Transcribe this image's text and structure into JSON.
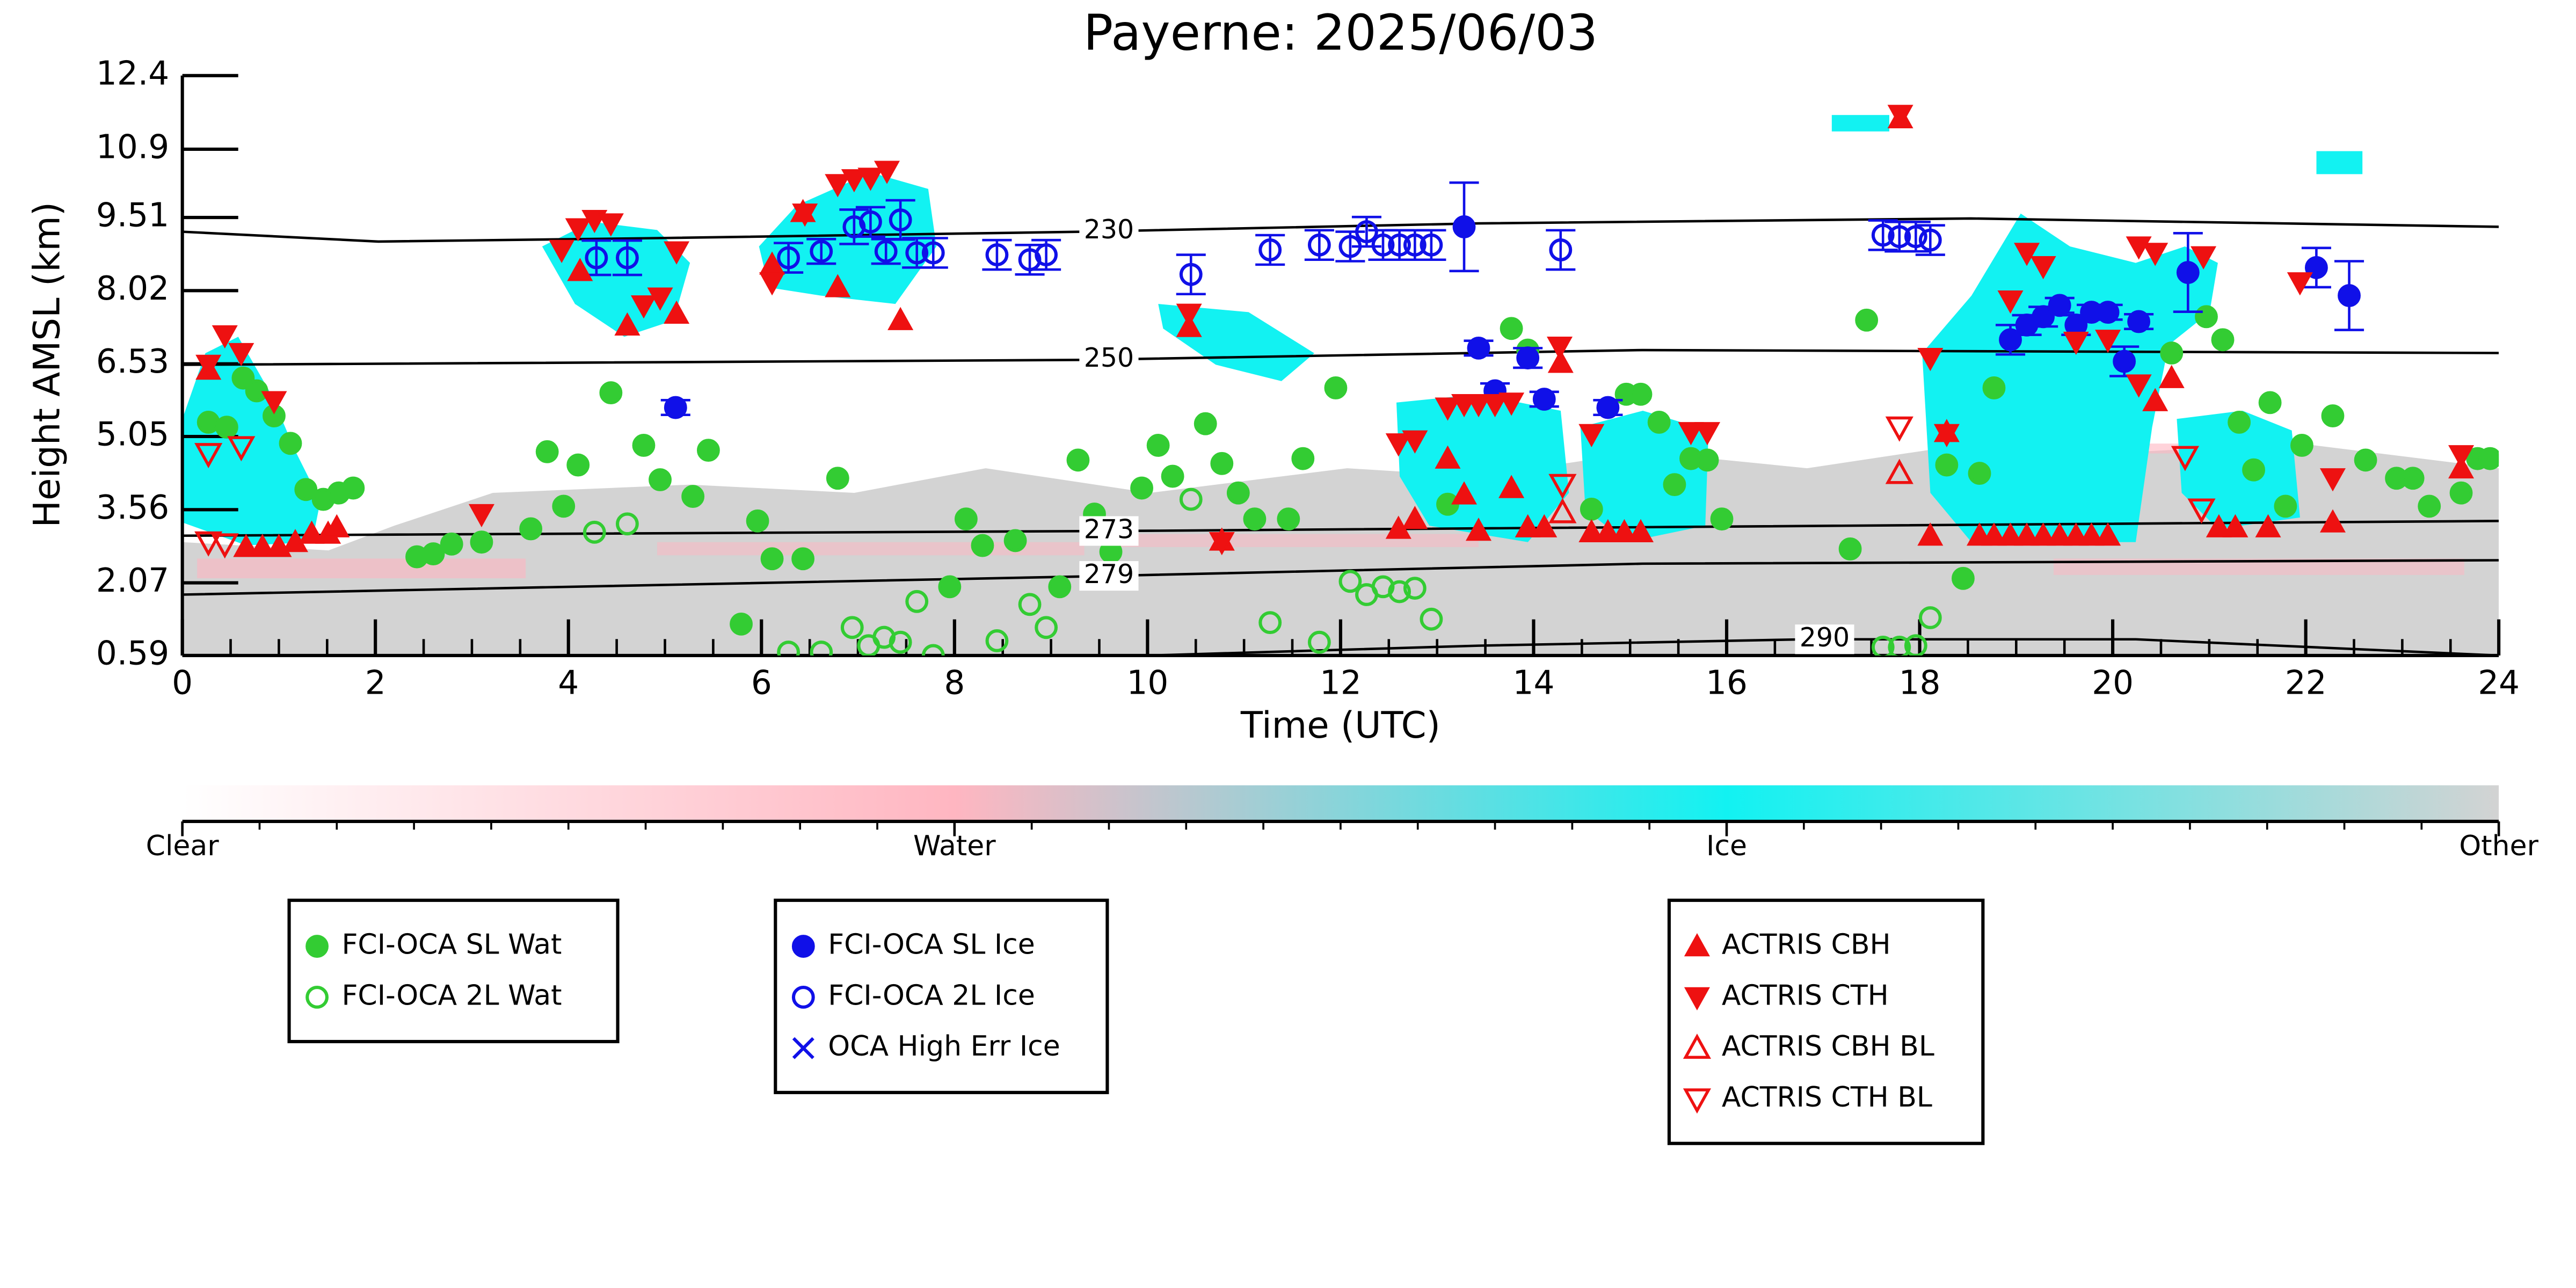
{
  "chart_data": {
    "type": "scatter",
    "title": "Payerne: 2025/06/03",
    "xlabel": "Time (UTC)",
    "ylabel": "Height AMSL (km)",
    "xlim": [
      0,
      24
    ],
    "xticks": [
      0,
      2,
      4,
      6,
      8,
      10,
      12,
      14,
      16,
      18,
      20,
      22,
      24
    ],
    "ylim": [
      0.59,
      12.4
    ],
    "yticks": [
      0.59,
      2.07,
      3.56,
      5.05,
      6.53,
      8.02,
      9.51,
      10.9,
      12.4
    ],
    "grid": false,
    "series": [
      {
        "name": "FCI-OCA SL Wat",
        "color": "#33cc33",
        "marker": "circle",
        "filled": true,
        "x": [
          0.27,
          0.46,
          0.63,
          0.77,
          0.95,
          1.12,
          1.28,
          1.46,
          1.62,
          1.77,
          2.43,
          2.6,
          2.79,
          3.1,
          3.61,
          3.78,
          3.95,
          4.1,
          4.44,
          4.78,
          4.95,
          5.29,
          5.45,
          5.79,
          5.96,
          6.11,
          6.43,
          6.79,
          7.95,
          8.12,
          8.29,
          8.63,
          9.09,
          9.28,
          9.45,
          9.62,
          9.94,
          10.11,
          10.26,
          10.6,
          10.77,
          10.94,
          11.11,
          11.46,
          11.61,
          11.95,
          13.11,
          13.77,
          13.94,
          14.6,
          14.96,
          15.11,
          15.3,
          15.46,
          15.63,
          15.8,
          15.95,
          17.28,
          17.45,
          18.28,
          18.45,
          18.62,
          18.77,
          20.61,
          20.97,
          21.14,
          21.31,
          21.46,
          21.63,
          21.79,
          21.96,
          22.28,
          22.62,
          22.94,
          23.11,
          23.28,
          23.61,
          23.78,
          23.91
        ],
        "values": [
          5.34,
          5.24,
          6.24,
          5.98,
          5.47,
          4.91,
          3.97,
          3.77,
          3.9,
          4.0,
          2.6,
          2.66,
          2.86,
          2.9,
          3.17,
          4.74,
          3.63,
          4.47,
          5.94,
          4.87,
          4.17,
          3.83,
          4.77,
          1.23,
          3.33,
          2.56,
          2.56,
          4.2,
          1.99,
          3.37,
          2.83,
          2.93,
          1.99,
          4.57,
          3.47,
          2.7,
          4.0,
          4.87,
          4.24,
          5.31,
          4.5,
          3.9,
          3.37,
          3.37,
          4.6,
          6.04,
          3.67,
          7.25,
          6.81,
          3.57,
          5.91,
          5.91,
          5.34,
          4.07,
          4.6,
          4.57,
          3.37,
          2.76,
          7.42,
          4.47,
          2.16,
          4.3,
          6.04,
          6.75,
          7.49,
          7.02,
          5.34,
          4.37,
          5.74,
          3.63,
          4.87,
          5.47,
          4.57,
          4.2,
          4.2,
          3.63,
          3.9,
          4.6,
          4.6
        ]
      },
      {
        "name": "FCI-OCA 2L Wat",
        "color": "#33cc33",
        "marker": "circle",
        "filled": false,
        "x": [
          4.27,
          4.61,
          6.28,
          6.62,
          6.94,
          7.11,
          7.27,
          7.44,
          7.61,
          7.78,
          8.44,
          8.78,
          8.95,
          10.45,
          11.27,
          11.78,
          12.1,
          12.27,
          12.44,
          12.61,
          12.77,
          12.94,
          17.62,
          17.79,
          17.96,
          18.11
        ],
        "values": [
          3.1,
          3.27,
          0.66,
          0.66,
          1.16,
          0.79,
          0.96,
          0.86,
          1.69,
          0.59,
          0.89,
          1.63,
          1.16,
          3.77,
          1.26,
          0.86,
          2.1,
          1.83,
          1.99,
          1.89,
          1.96,
          1.33,
          0.76,
          0.76,
          0.79,
          1.36
        ]
      },
      {
        "name": "FCI-OCA SL Ice",
        "color": "#1010e8",
        "marker": "circle",
        "filled": true,
        "x": [
          5.11,
          13.28,
          13.43,
          13.6,
          13.94,
          14.11,
          14.77,
          18.94,
          19.11,
          19.28,
          19.45,
          19.62,
          19.78,
          19.95,
          20.12,
          20.27,
          20.78,
          22.11,
          22.45
        ],
        "values": [
          5.64,
          9.32,
          6.85,
          5.98,
          6.65,
          5.81,
          5.64,
          7.02,
          7.32,
          7.49,
          7.72,
          7.32,
          7.58,
          7.58,
          6.58,
          7.39,
          8.39,
          8.49,
          7.92
        ],
        "errors": [
          0.15,
          0.9,
          0.15,
          0.15,
          0.2,
          0.15,
          0.15,
          0.3,
          0.2,
          0.2,
          0.15,
          0.2,
          0.15,
          0.15,
          0.3,
          0.15,
          0.8,
          0.4,
          0.7
        ]
      },
      {
        "name": "FCI-OCA 2L Ice",
        "color": "#1010e8",
        "marker": "circle",
        "filled": false,
        "x": [
          4.29,
          4.61,
          6.28,
          6.62,
          6.96,
          7.13,
          7.29,
          7.44,
          7.61,
          7.78,
          8.44,
          8.78,
          8.95,
          10.45,
          11.27,
          11.78,
          12.1,
          12.27,
          12.44,
          12.61,
          12.77,
          12.94,
          14.28,
          17.62,
          17.79,
          17.96,
          18.11
        ],
        "values": [
          8.69,
          8.69,
          8.69,
          8.82,
          9.32,
          9.42,
          8.82,
          9.46,
          8.79,
          8.79,
          8.75,
          8.65,
          8.75,
          8.35,
          8.85,
          8.95,
          8.92,
          9.22,
          8.95,
          8.95,
          8.95,
          8.95,
          8.85,
          9.15,
          9.12,
          9.12,
          9.05
        ],
        "errors": [
          0.35,
          0.35,
          0.3,
          0.25,
          0.35,
          0.3,
          0.25,
          0.4,
          0.3,
          0.3,
          0.3,
          0.3,
          0.3,
          0.4,
          0.3,
          0.3,
          0.3,
          0.3,
          0.3,
          0.3,
          0.3,
          0.3,
          0.4,
          0.3,
          0.3,
          0.3,
          0.3
        ]
      },
      {
        "name": "OCA High Err Ice",
        "color": "#1010e8",
        "marker": "x",
        "filled": true,
        "x": [],
        "values": []
      },
      {
        "name": "ACTRIS CBH",
        "color": "#ee1111",
        "marker": "triangle-up",
        "filled": true,
        "x": [
          0.27,
          0.66,
          0.83,
          1.0,
          1.17,
          1.34,
          1.51,
          1.6,
          4.12,
          4.61,
          5.12,
          6.11,
          6.43,
          6.79,
          7.44,
          10.43,
          10.77,
          12.6,
          12.77,
          13.11,
          13.28,
          13.43,
          13.77,
          13.94,
          14.11,
          14.28,
          14.6,
          14.77,
          14.94,
          15.11,
          17.8,
          18.11,
          18.28,
          18.62,
          18.77,
          18.94,
          19.11,
          19.28,
          19.45,
          19.62,
          19.78,
          19.95,
          20.44,
          20.61,
          21.1,
          21.27,
          21.61,
          22.28,
          23.61
        ],
        "values": [
          6.41,
          2.8,
          2.8,
          2.8,
          2.9,
          3.07,
          3.07,
          3.2,
          8.42,
          7.31,
          7.55,
          8.55,
          9.62,
          8.09,
          7.42,
          7.28,
          2.93,
          3.17,
          3.37,
          4.6,
          3.87,
          3.13,
          4.0,
          3.2,
          3.2,
          6.55,
          3.1,
          3.1,
          3.1,
          3.1,
          11.53,
          3.03,
          5.14,
          3.03,
          3.03,
          3.03,
          3.03,
          3.03,
          3.03,
          3.03,
          3.03,
          3.03,
          5.77,
          6.24,
          3.2,
          3.2,
          3.2,
          3.3,
          4.4
        ]
      },
      {
        "name": "ACTRIS CTH",
        "color": "#ee1111",
        "marker": "triangle-down",
        "filled": true,
        "x": [
          0.27,
          0.44,
          0.61,
          0.95,
          3.1,
          3.93,
          4.1,
          4.27,
          4.44,
          4.78,
          4.95,
          5.12,
          6.11,
          6.45,
          6.79,
          6.96,
          7.13,
          7.3,
          10.43,
          10.77,
          12.6,
          12.77,
          13.11,
          13.28,
          13.43,
          13.6,
          13.77,
          14.27,
          14.6,
          15.63,
          15.8,
          17.8,
          18.11,
          18.28,
          18.94,
          19.11,
          19.28,
          19.62,
          19.95,
          20.27,
          20.27,
          20.44,
          20.94,
          21.94,
          22.28,
          23.61
        ],
        "values": [
          6.51,
          7.11,
          6.75,
          5.77,
          3.47,
          8.85,
          9.29,
          9.46,
          9.39,
          7.72,
          7.88,
          8.82,
          8.19,
          9.59,
          10.19,
          10.29,
          10.32,
          10.46,
          7.55,
          2.9,
          4.91,
          4.97,
          5.64,
          5.71,
          5.71,
          5.71,
          5.74,
          6.88,
          5.1,
          5.14,
          5.14,
          11.6,
          6.65,
          5.1,
          7.82,
          8.79,
          8.52,
          6.98,
          7.02,
          6.11,
          8.92,
          8.79,
          8.72,
          8.19,
          4.2,
          4.67
        ]
      },
      {
        "name": "ACTRIS CBH BL",
        "color": "#ee1111",
        "marker": "triangle-up",
        "filled": false,
        "x": [
          14.3,
          17.79
        ],
        "values": [
          3.5,
          4.3
        ]
      },
      {
        "name": "ACTRIS CTH BL",
        "color": "#ee1111",
        "marker": "triangle-down",
        "filled": false,
        "x": [
          0.27,
          0.61,
          0.27,
          0.44,
          14.3,
          17.79,
          20.75,
          20.92
        ],
        "values": [
          4.7,
          4.84,
          2.9,
          2.86,
          4.07,
          5.24,
          4.64,
          3.57
        ]
      }
    ],
    "contours": [
      {
        "label": 230,
        "x": [
          0,
          2.03,
          4.92,
          9.34,
          13.43,
          18.53,
          24
        ],
        "values": [
          9.22,
          9.02,
          9.09,
          9.22,
          9.39,
          9.49,
          9.32
        ]
      },
      {
        "label": 250,
        "x": [
          0,
          9.34,
          15.13,
          24
        ],
        "values": [
          6.51,
          6.61,
          6.81,
          6.75
        ]
      },
      {
        "label": 273,
        "x": [
          0,
          10.03,
          24
        ],
        "values": [
          3.03,
          3.13,
          3.33
        ]
      },
      {
        "label": 279,
        "x": [
          0,
          9.34,
          15.13,
          24
        ],
        "values": [
          1.83,
          2.2,
          2.46,
          2.53
        ]
      },
      {
        "label": 290,
        "x": [
          10.03,
          13.43,
          16.83,
          20.24,
          24
        ],
        "values": [
          0.59,
          0.79,
          0.92,
          0.92,
          0.59
        ]
      }
    ],
    "colorbar": {
      "labels": [
        "Clear",
        "Water",
        "Ice",
        "Other"
      ],
      "colors": [
        "#ffffff",
        "#ffb6c1",
        "#12f2f2",
        "#d3d3d3"
      ]
    }
  }
}
